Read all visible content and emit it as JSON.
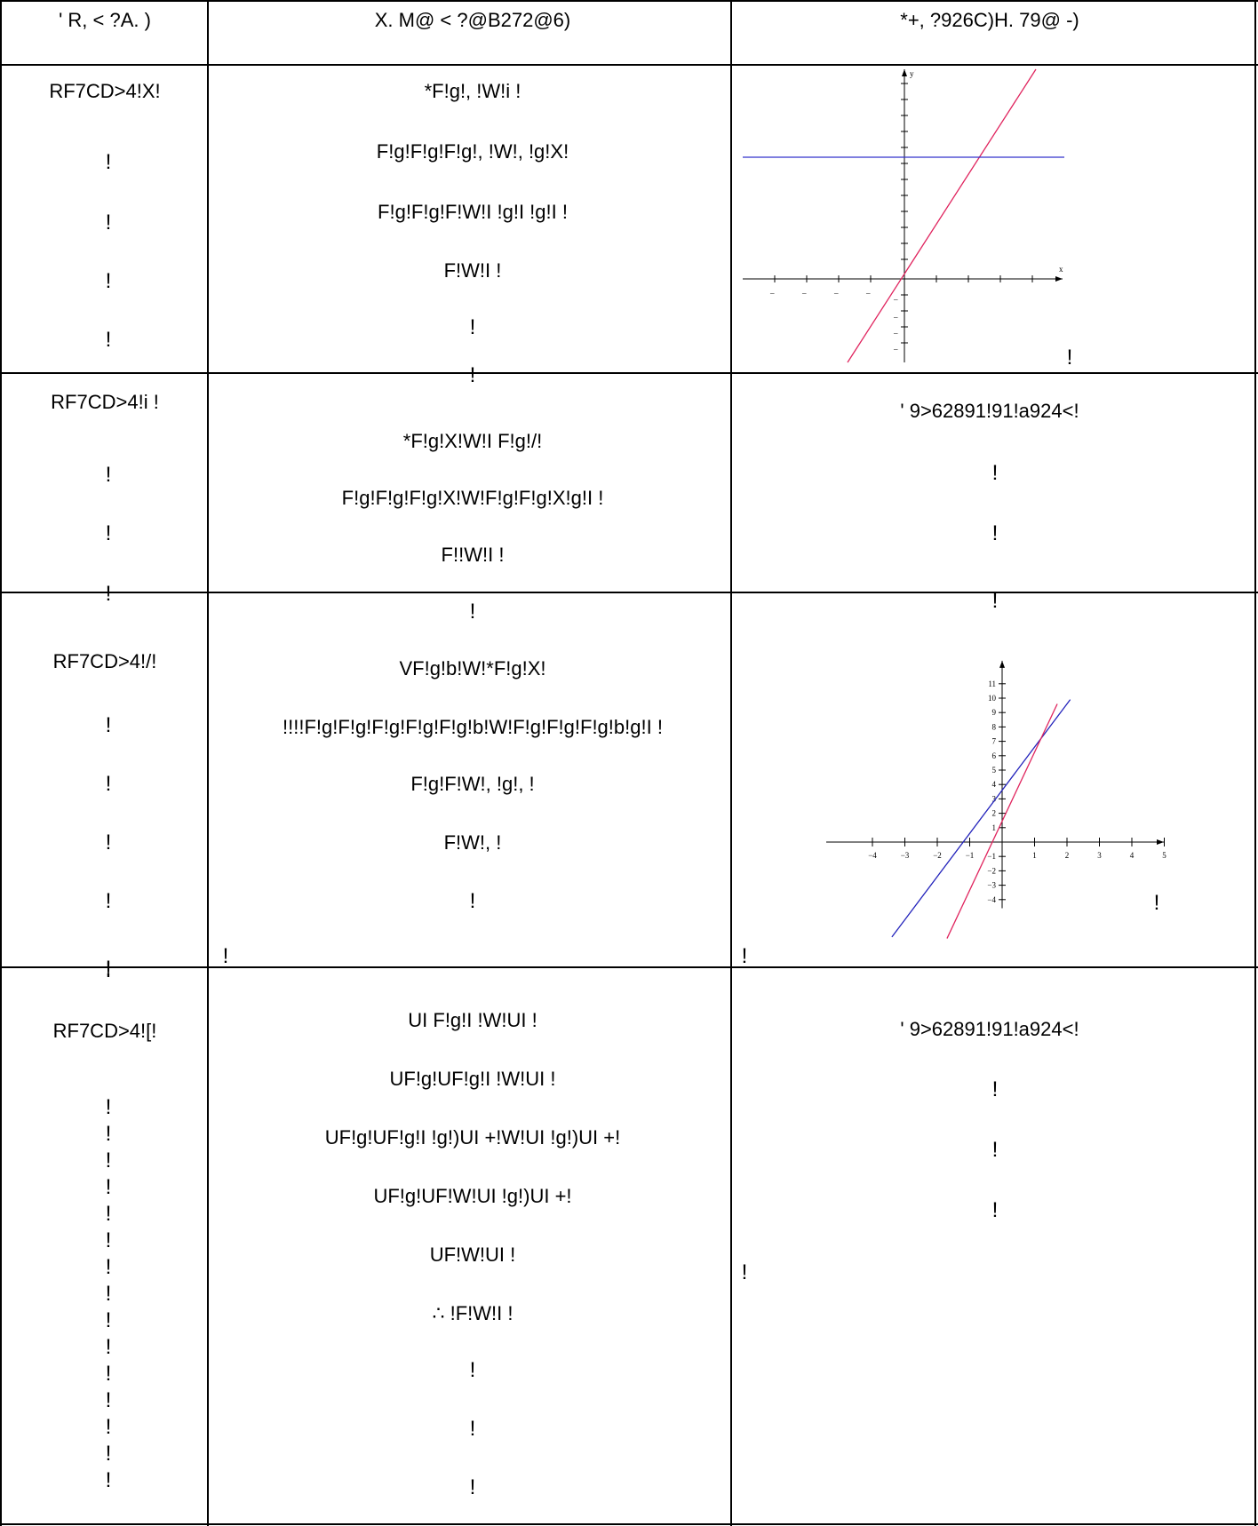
{
  "headers": [
    "' R, < ?A. )",
    "X. M@ < ?@B272@6)",
    "*+, ?926C)H. 79@ -)"
  ],
  "marker": "!",
  "rows": [
    {
      "label": "RF7CD>4!X!",
      "lines": [
        "*F!g!, !W!i !",
        "F!g!F!g!F!g!, !W!, !g!X!",
        "F!g!F!g!F!W!I !g!I !g!I !",
        "F!W!I !"
      ]
    },
    {
      "label": "RF7CD>4!i !",
      "lines": [
        "*F!g!X!W!I F!g!/!",
        "F!g!F!g!F!g!X!W!F!g!F!g!X!g!I !",
        "F!!W!I !"
      ],
      "right": "' 9>62891!91!a924<!"
    },
    {
      "label": "RF7CD>4!/!",
      "lines": [
        "VF!g!b!W!*F!g!X!",
        "!!!!F!g!F!g!F!g!F!g!F!g!b!W!F!g!F!g!F!g!b!g!I !",
        "F!g!F!W!, !g!, !",
        "F!W!, !"
      ]
    },
    {
      "label": "RF7CD>4![!",
      "lines": [
        "UI F!g!I !W!UI !",
        "UF!g!UF!g!I !W!UI !",
        "UF!g!UF!g!I !g!)UI +!W!UI !g!)UI +!",
        "UF!g!UF!W!UI !g!)UI +!",
        "UF!W!UI !",
        "∴ !F!W!I !"
      ],
      "right": "' 9>62891!91!a924<!"
    }
  ],
  "chart_data": [
    {
      "type": "line",
      "title": "",
      "xlabel": "x",
      "ylabel": "y",
      "series": [
        {
          "values": [
            [
              -2,
              -6
            ],
            [
              10,
              18
            ]
          ],
          "color": "#e0245e"
        },
        {
          "values": [
            [
              -5,
              8
            ],
            [
              5,
              8
            ]
          ],
          "color": "#3333cc"
        }
      ]
    },
    {
      "type": "line",
      "title": "",
      "xlim": [
        -4,
        5
      ],
      "ylim": [
        -4,
        11
      ],
      "x_ticks": [
        "−4",
        "−3",
        "−2",
        "−1",
        "1",
        "2",
        "3",
        "4",
        "5"
      ],
      "y_ticks": [
        "11",
        "10",
        "9",
        "8",
        "7",
        "6",
        "5",
        "4",
        "3",
        "2",
        "1",
        "−1",
        "−2",
        "−3",
        "−4"
      ],
      "series": [
        {
          "values": [
            [
              -3.4,
              -6.6
            ],
            [
              2.1,
              9.9
            ]
          ],
          "color": "#2222bb"
        },
        {
          "values": [
            [
              -1.7,
              -6.7
            ],
            [
              1.7,
              9.6
            ]
          ],
          "color": "#e0245e"
        }
      ]
    }
  ]
}
